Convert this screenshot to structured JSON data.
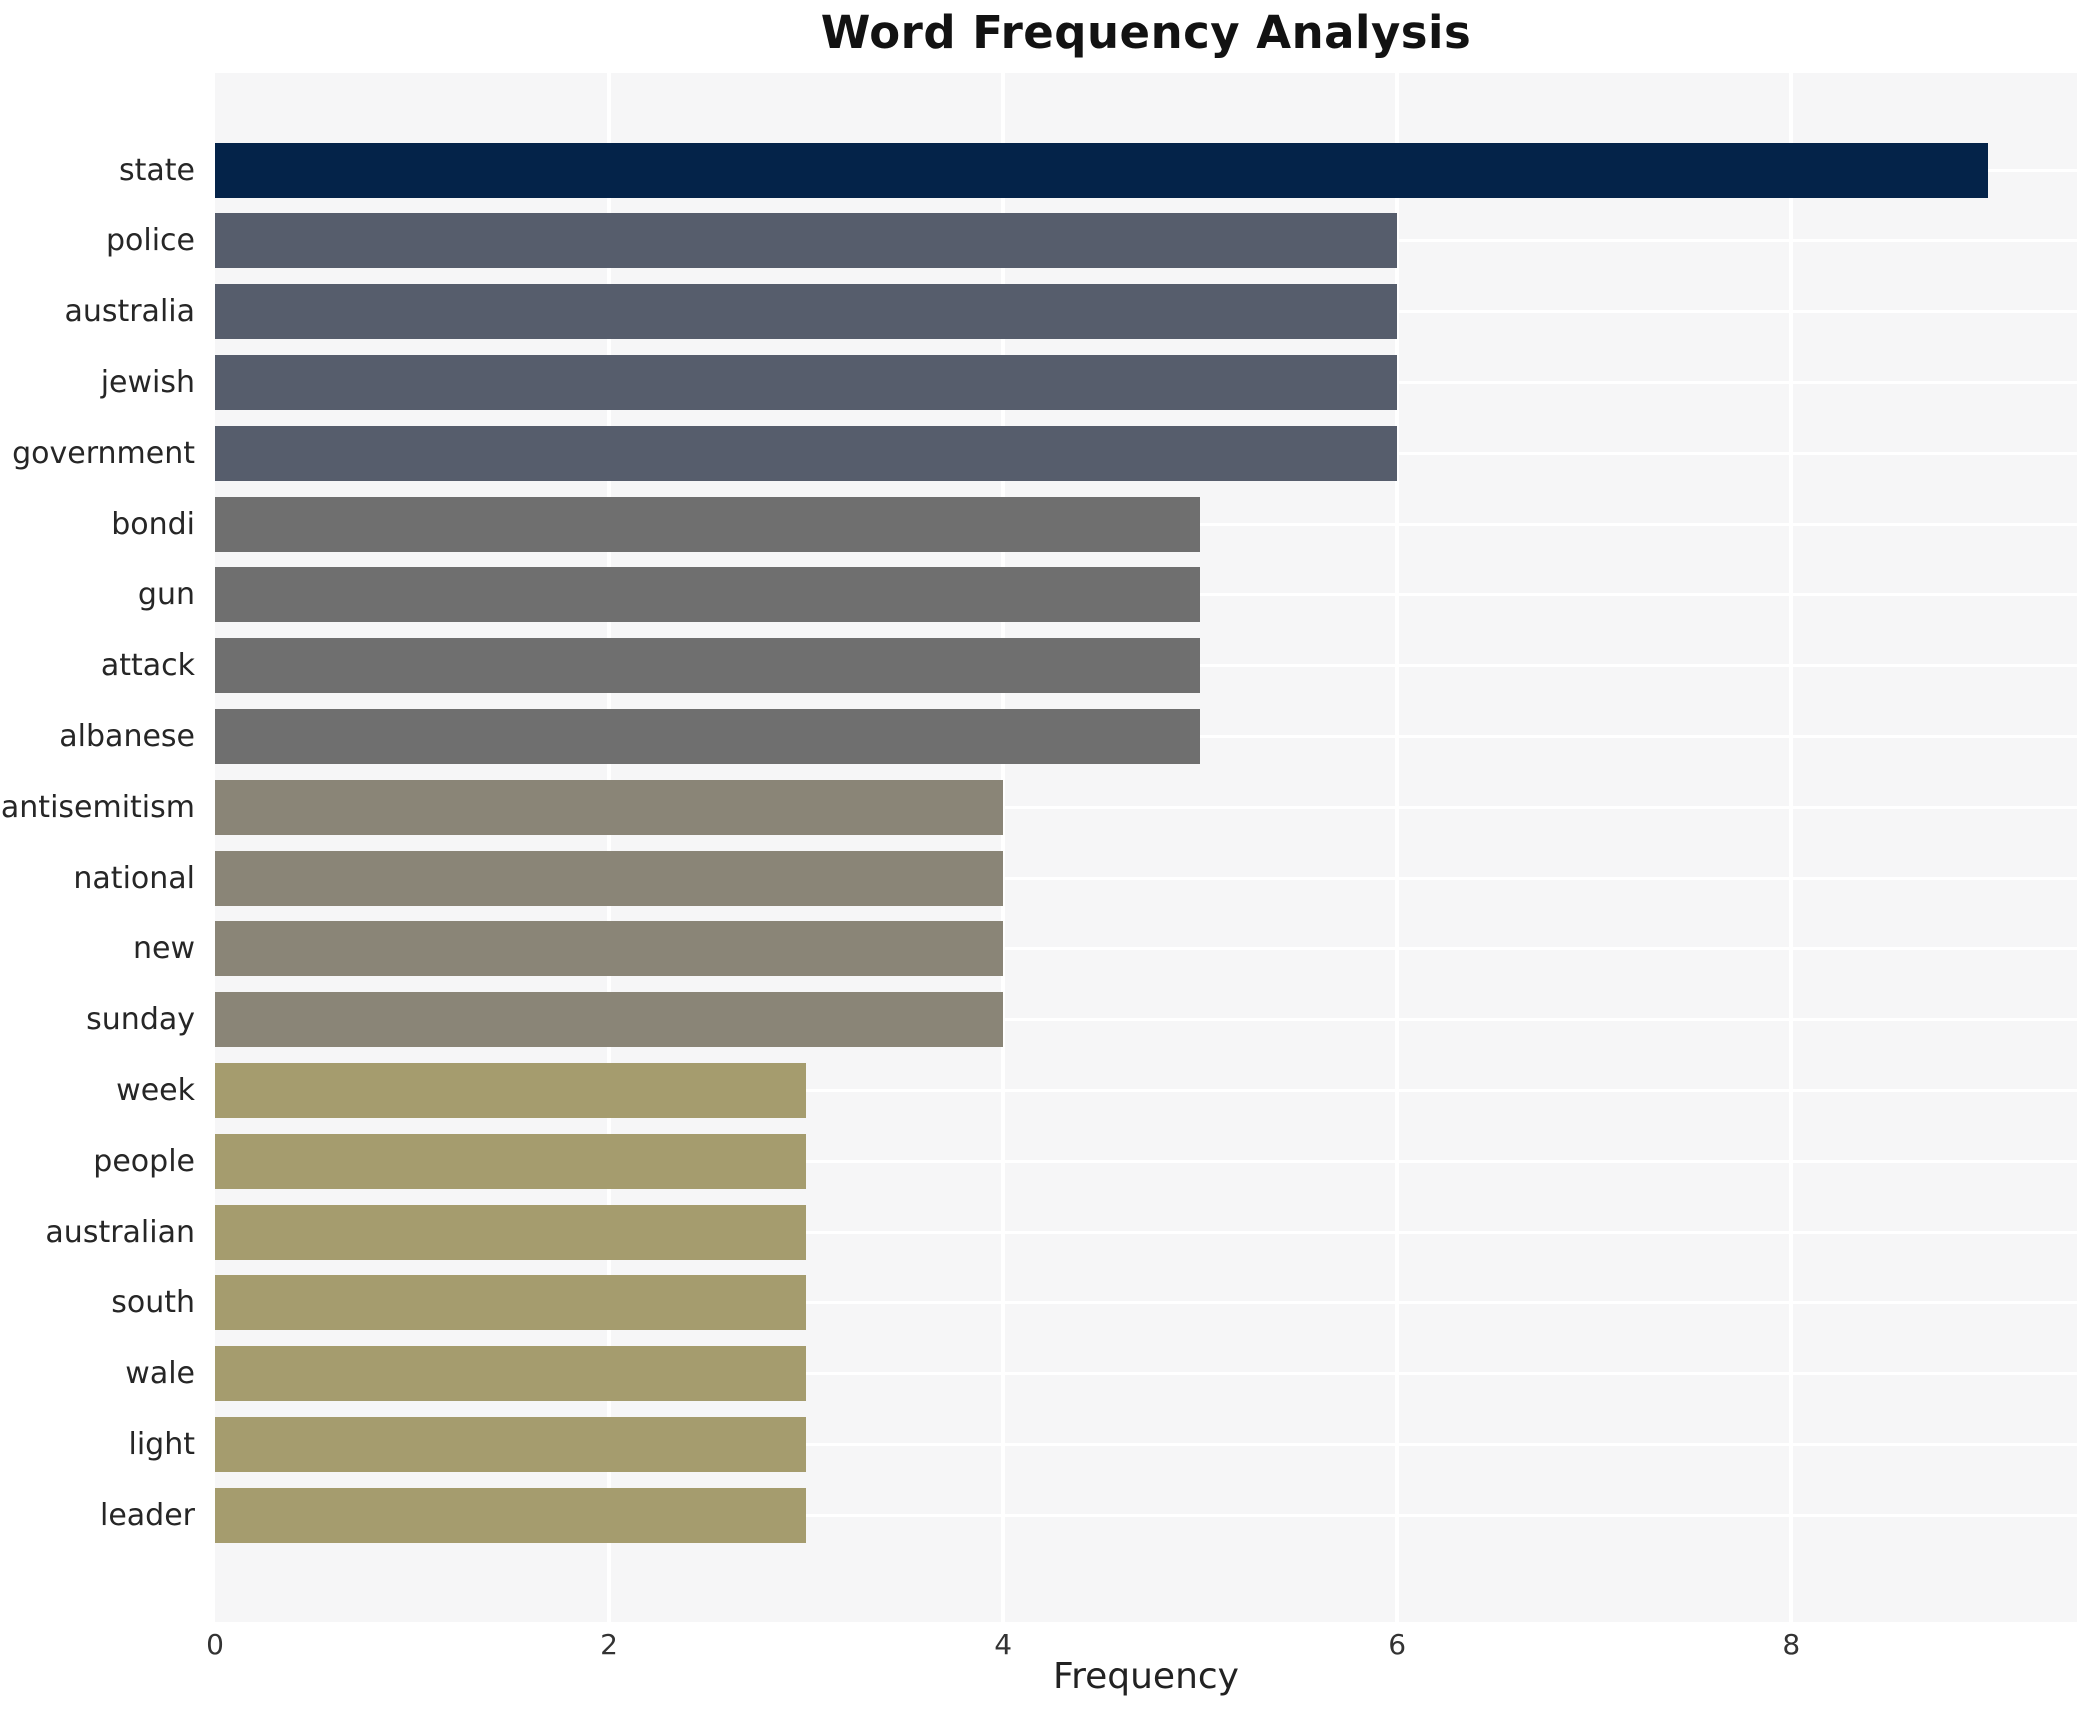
{
  "chart_data": {
    "type": "bar",
    "orientation": "horizontal",
    "title": "Word Frequency Analysis",
    "xlabel": "Frequency",
    "ylabel": "",
    "categories": [
      "state",
      "police",
      "australia",
      "jewish",
      "government",
      "bondi",
      "gun",
      "attack",
      "albanese",
      "antisemitism",
      "national",
      "new",
      "sunday",
      "week",
      "people",
      "australian",
      "south",
      "wale",
      "light",
      "leader"
    ],
    "values": [
      9,
      6,
      6,
      6,
      6,
      5,
      5,
      5,
      5,
      4,
      4,
      4,
      4,
      3,
      3,
      3,
      3,
      3,
      3,
      3
    ],
    "xlim": [
      0,
      9.45
    ],
    "xticks": [
      0,
      2,
      4,
      6,
      8
    ],
    "grid": true,
    "legend": false,
    "colors": {
      "figure_bg": "#ffffff",
      "plot_bg": "#f6f6f7",
      "grid": "#ffffff",
      "title_text": "#121212",
      "category_text": "#262626",
      "tick_text": "#333333",
      "axis_label_text": "#222222",
      "value_colors": {
        "9": "#042349",
        "6": "#565d6c",
        "5": "#6f6f6f",
        "4": "#8a8577",
        "3": "#a59c6e"
      }
    }
  }
}
